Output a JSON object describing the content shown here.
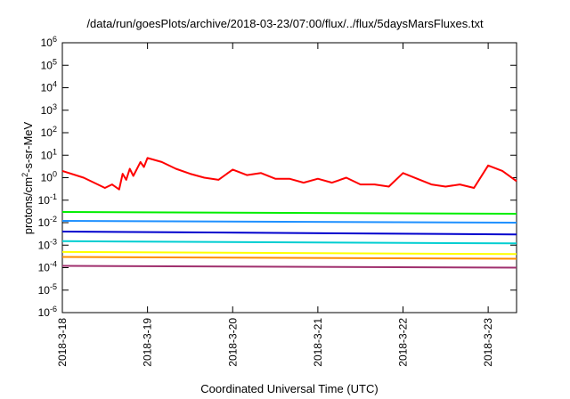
{
  "chart_data": {
    "type": "line",
    "title": "/data/run/goesPlots/archive/2018-03-23/07:00/flux/../flux/5daysMarsFluxes.txt",
    "xlabel": "Coordinated Universal Time (UTC)",
    "ylabel": {
      "prefix": "protons/cm",
      "sup": "2",
      "suffix": "-s-sr-MeV"
    },
    "yscale": "log",
    "ylim": [
      1e-06,
      1000000.0
    ],
    "y_ticks": [
      {
        "base": "10",
        "exp": "-6",
        "value": 1e-06
      },
      {
        "base": "10",
        "exp": "-5",
        "value": 1e-05
      },
      {
        "base": "10",
        "exp": "-4",
        "value": 0.0001
      },
      {
        "base": "10",
        "exp": "-3",
        "value": 0.001
      },
      {
        "base": "10",
        "exp": "-2",
        "value": 0.01
      },
      {
        "base": "10",
        "exp": "-1",
        "value": 0.1
      },
      {
        "base": "10",
        "exp": "0",
        "value": 1
      },
      {
        "base": "10",
        "exp": "1",
        "value": 10
      },
      {
        "base": "10",
        "exp": "2",
        "value": 100
      },
      {
        "base": "10",
        "exp": "3",
        "value": 1000
      },
      {
        "base": "10",
        "exp": "4",
        "value": 10000
      },
      {
        "base": "10",
        "exp": "5",
        "value": 100000
      },
      {
        "base": "10",
        "exp": "6",
        "value": 1000000
      }
    ],
    "xlim": [
      "2018-03-18T00:00",
      "2018-03-23T08:00"
    ],
    "x_ticks": [
      {
        "label": "2018-3-18",
        "value": "2018-03-18T00:00"
      },
      {
        "label": "2018-3-19",
        "value": "2018-03-19T00:00"
      },
      {
        "label": "2018-3-20",
        "value": "2018-03-20T00:00"
      },
      {
        "label": "2018-3-21",
        "value": "2018-03-21T00:00"
      },
      {
        "label": "2018-3-22",
        "value": "2018-03-22T00:00"
      },
      {
        "label": "2018-3-23",
        "value": "2018-03-23T00:00"
      }
    ],
    "grid": false,
    "legend": false,
    "series": [
      {
        "color": "#ff0000",
        "x": [
          "2018-03-18T00:00",
          "2018-03-18T06:00",
          "2018-03-18T10:00",
          "2018-03-18T12:00",
          "2018-03-18T14:00",
          "2018-03-18T16:00",
          "2018-03-18T17:00",
          "2018-03-18T18:00",
          "2018-03-18T19:00",
          "2018-03-18T20:00",
          "2018-03-18T22:00",
          "2018-03-18T23:00",
          "2018-03-19T00:00",
          "2018-03-19T04:00",
          "2018-03-19T08:00",
          "2018-03-19T12:00",
          "2018-03-19T16:00",
          "2018-03-19T20:00",
          "2018-03-20T00:00",
          "2018-03-20T04:00",
          "2018-03-20T08:00",
          "2018-03-20T12:00",
          "2018-03-20T16:00",
          "2018-03-20T20:00",
          "2018-03-21T00:00",
          "2018-03-21T04:00",
          "2018-03-21T08:00",
          "2018-03-21T12:00",
          "2018-03-21T16:00",
          "2018-03-21T20:00",
          "2018-03-22T00:00",
          "2018-03-22T04:00",
          "2018-03-22T08:00",
          "2018-03-22T12:00",
          "2018-03-22T16:00",
          "2018-03-22T20:00",
          "2018-03-23T00:00",
          "2018-03-23T04:00",
          "2018-03-23T08:00"
        ],
        "y": [
          2.0,
          1.0,
          0.5,
          0.35,
          0.5,
          0.3,
          1.5,
          0.8,
          2.5,
          1.2,
          5.0,
          3.0,
          7.5,
          5.0,
          2.5,
          1.5,
          1.0,
          0.8,
          2.3,
          1.3,
          1.6,
          0.9,
          0.9,
          0.6,
          0.9,
          0.6,
          1.0,
          0.5,
          0.5,
          0.4,
          1.6,
          0.9,
          0.5,
          0.4,
          0.5,
          0.35,
          3.5,
          2.0,
          0.7
        ]
      },
      {
        "color": "#00ee00",
        "x": [
          "2018-03-18T00:00",
          "2018-03-23T08:00"
        ],
        "y": [
          0.03,
          0.025
        ]
      },
      {
        "color": "#1e90ff",
        "x": [
          "2018-03-18T00:00",
          "2018-03-23T08:00"
        ],
        "y": [
          0.012,
          0.01
        ]
      },
      {
        "color": "#0000cd",
        "x": [
          "2018-03-18T00:00",
          "2018-03-23T08:00"
        ],
        "y": [
          0.004,
          0.003
        ]
      },
      {
        "color": "#00ced1",
        "x": [
          "2018-03-18T00:00",
          "2018-03-23T08:00"
        ],
        "y": [
          0.0015,
          0.0012
        ]
      },
      {
        "color": "#ffff00",
        "x": [
          "2018-03-18T00:00",
          "2018-03-23T08:00"
        ],
        "y": [
          0.0005,
          0.0004
        ]
      },
      {
        "color": "#ff8c00",
        "x": [
          "2018-03-18T00:00",
          "2018-03-23T08:00"
        ],
        "y": [
          0.0003,
          0.00025
        ]
      },
      {
        "color": "#a0306e",
        "x": [
          "2018-03-18T00:00",
          "2018-03-23T08:00"
        ],
        "y": [
          0.00012,
          0.0001
        ]
      }
    ]
  }
}
